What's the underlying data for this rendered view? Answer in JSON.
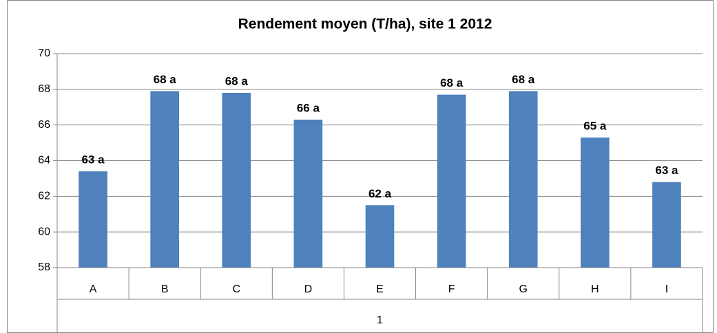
{
  "chart_data": {
    "type": "bar",
    "title": "Rendement moyen (T/ha), site 1 2012",
    "categories": [
      "A",
      "B",
      "C",
      "D",
      "E",
      "F",
      "G",
      "H",
      "I"
    ],
    "category_groups": [
      "1"
    ],
    "values": [
      63.4,
      67.9,
      67.8,
      66.3,
      61.5,
      67.7,
      67.9,
      65.3,
      62.8
    ],
    "value_labels": [
      "63 a",
      "68 a",
      "68 a",
      "66 a",
      "62 a",
      "68 a",
      "68 a",
      "65 a",
      "63 a"
    ],
    "color": "#4f81bd",
    "ylim": [
      58,
      70
    ],
    "yticks": [
      58,
      60,
      62,
      64,
      66,
      68,
      70
    ],
    "grid": true
  }
}
